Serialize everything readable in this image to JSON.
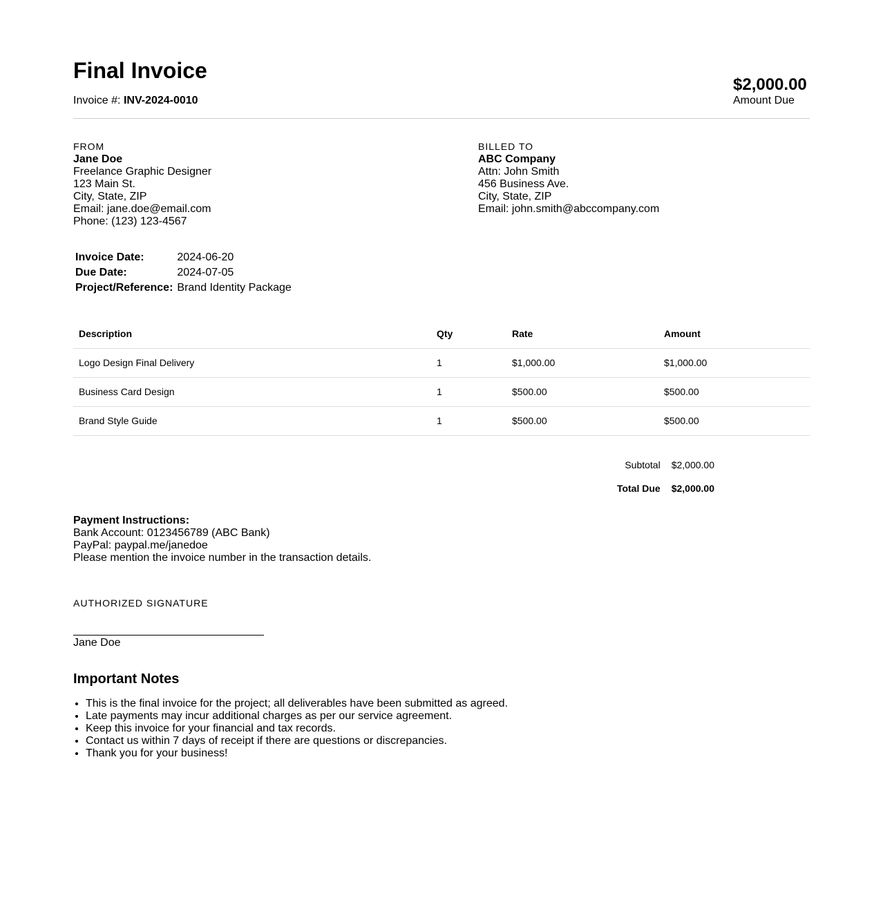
{
  "header": {
    "title": "Final Invoice",
    "invoice_label": "Invoice #:",
    "invoice_number": "INV-2024-0010",
    "amount": "$2,000.00",
    "amount_label": "Amount Due"
  },
  "from": {
    "label": "FROM",
    "name": "Jane Doe",
    "lines": [
      "Freelance Graphic Designer",
      "123 Main St.",
      "City, State, ZIP",
      "Email: jane.doe@email.com",
      "Phone: (123) 123-4567"
    ]
  },
  "billed_to": {
    "label": "BILLED TO",
    "name": "ABC Company",
    "lines": [
      "Attn: John Smith",
      "456 Business Ave.",
      "City, State, ZIP",
      "Email: john.smith@abccompany.com"
    ]
  },
  "meta": [
    {
      "label": "Invoice Date:",
      "value": "2024-06-20"
    },
    {
      "label": "Due Date:",
      "value": "2024-07-05"
    },
    {
      "label": "Project/Reference:",
      "value": "Brand Identity Package"
    }
  ],
  "items": {
    "headers": [
      "Description",
      "Qty",
      "Rate",
      "Amount"
    ],
    "rows": [
      [
        "Logo Design Final Delivery",
        "1",
        "$1,000.00",
        "$1,000.00"
      ],
      [
        "Business Card Design",
        "1",
        "$500.00",
        "$500.00"
      ],
      [
        "Brand Style Guide",
        "1",
        "$500.00",
        "$500.00"
      ]
    ]
  },
  "totals": {
    "subtotal_label": "Subtotal",
    "subtotal": "$2,000.00",
    "total_label": "Total Due",
    "total": "$2,000.00"
  },
  "payment": {
    "title": "Payment Instructions:",
    "lines": [
      "Bank Account: 0123456789 (ABC Bank)",
      "PayPal: paypal.me/janedoe",
      "Please mention the invoice number in the transaction details."
    ]
  },
  "signature": {
    "label": "AUTHORIZED SIGNATURE",
    "name": "Jane Doe"
  },
  "notes": {
    "title": "Important Notes",
    "items": [
      "This is the final invoice for the project; all deliverables have been submitted as agreed.",
      "Late payments may incur additional charges as per our service agreement.",
      "Keep this invoice for your financial and tax records.",
      "Contact us within 7 days of receipt if there are questions or discrepancies.",
      "Thank you for your business!"
    ]
  }
}
